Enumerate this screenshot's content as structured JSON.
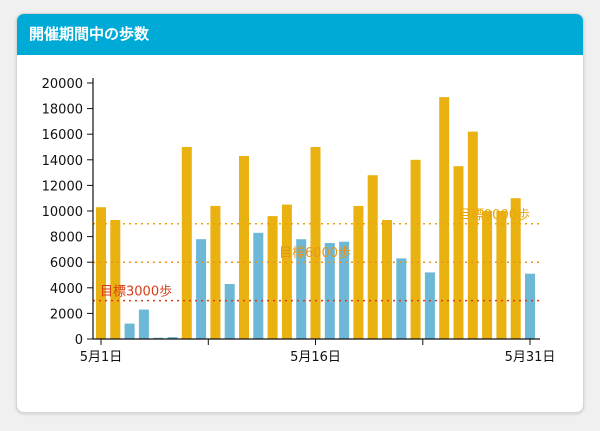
{
  "header": {
    "title": "開催期間中の歩数"
  },
  "colors": {
    "header_bg": "#00aad6",
    "bar_above_goal": "#eab210",
    "bar_below_goal": "#6cb8d6",
    "line_goal_3000": "#d83c18",
    "line_goal_6000": "#e89418",
    "line_goal_9000": "#e8a40c"
  },
  "chart_data": {
    "type": "bar",
    "title": "",
    "xlabel": "",
    "ylabel": "",
    "ylim": [
      0,
      20000
    ],
    "yticks": [
      0,
      2000,
      4000,
      6000,
      8000,
      10000,
      12000,
      14000,
      16000,
      18000,
      20000
    ],
    "x_tick_labels": [
      {
        "day": 1,
        "label": "5月1日"
      },
      {
        "day": 16,
        "label": "5月16日"
      },
      {
        "day": 31,
        "label": "5月31日"
      }
    ],
    "days": [
      1,
      2,
      3,
      4,
      5,
      6,
      7,
      8,
      9,
      10,
      11,
      12,
      13,
      14,
      15,
      16,
      17,
      18,
      19,
      20,
      21,
      22,
      23,
      24,
      25,
      26,
      27,
      28,
      29,
      30,
      31
    ],
    "values": [
      10300,
      9300,
      1200,
      2300,
      100,
      150,
      15000,
      7800,
      10400,
      4300,
      14300,
      8300,
      9600,
      10500,
      7800,
      15000,
      7500,
      7600,
      10400,
      12800,
      9300,
      6300,
      14000,
      5200,
      18900,
      13500,
      16200,
      10000,
      10000,
      11000,
      5100
    ],
    "bar_colors": [
      "above",
      "above",
      "below",
      "below",
      "below",
      "below",
      "above",
      "below",
      "above",
      "below",
      "above",
      "below",
      "above",
      "above",
      "below",
      "above",
      "below",
      "below",
      "above",
      "above",
      "above",
      "below",
      "above",
      "below",
      "above",
      "above",
      "above",
      "above",
      "above",
      "above",
      "below"
    ],
    "reference_lines": [
      {
        "value": 3000,
        "label": "目標3000歩",
        "color_key": "line_goal_3000",
        "label_pos": "left"
      },
      {
        "value": 6000,
        "label": "目標6000歩",
        "color_key": "line_goal_6000",
        "label_pos": "center"
      },
      {
        "value": 9000,
        "label": "目標9000歩",
        "color_key": "line_goal_9000",
        "label_pos": "right"
      }
    ],
    "grid": false,
    "legend": "none"
  }
}
